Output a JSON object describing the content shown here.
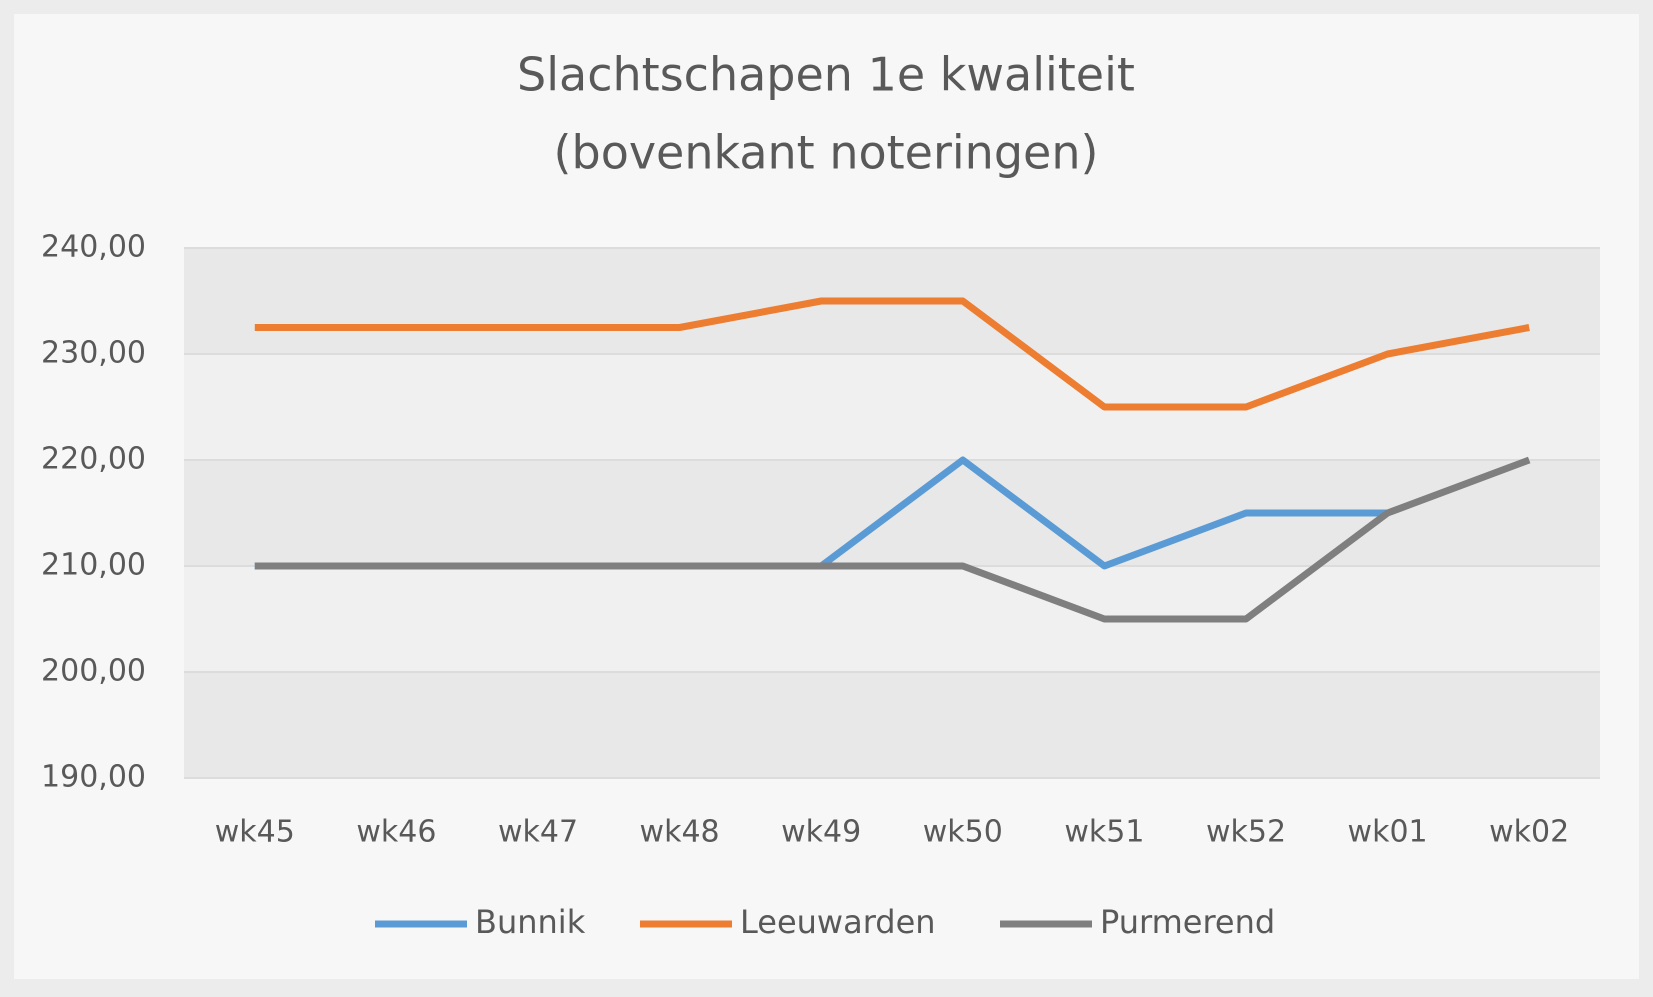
{
  "chart_data": {
    "type": "line",
    "title": [
      "Slachtschapen 1e kwaliteit",
      "(bovenkant noteringen)"
    ],
    "categories": [
      "wk45",
      "wk46",
      "wk47",
      "wk48",
      "wk49",
      "wk50",
      "wk51",
      "wk52",
      "wk01",
      "wk02"
    ],
    "series": [
      {
        "name": "Bunnik",
        "color": "#5b9bd5",
        "values": [
          210,
          210,
          210,
          210,
          210,
          220,
          210,
          215,
          215,
          null
        ]
      },
      {
        "name": "Leeuwarden",
        "color": "#ed7d31",
        "values": [
          232.5,
          232.5,
          232.5,
          232.5,
          235,
          235,
          225,
          225,
          230,
          232.5
        ]
      },
      {
        "name": "Purmerend",
        "color": "#7f7f7f",
        "values": [
          210,
          210,
          210,
          210,
          210,
          210,
          205,
          205,
          215,
          220
        ]
      }
    ],
    "ylim": [
      190,
      240
    ],
    "yticks": [
      {
        "value": 190,
        "label": "190,00"
      },
      {
        "value": 200,
        "label": "200,00"
      },
      {
        "value": 210,
        "label": "210,00"
      },
      {
        "value": 220,
        "label": "220,00"
      },
      {
        "value": 230,
        "label": "230,00"
      },
      {
        "value": 240,
        "label": "240,00"
      }
    ],
    "grid": true,
    "legend": "bottom"
  }
}
